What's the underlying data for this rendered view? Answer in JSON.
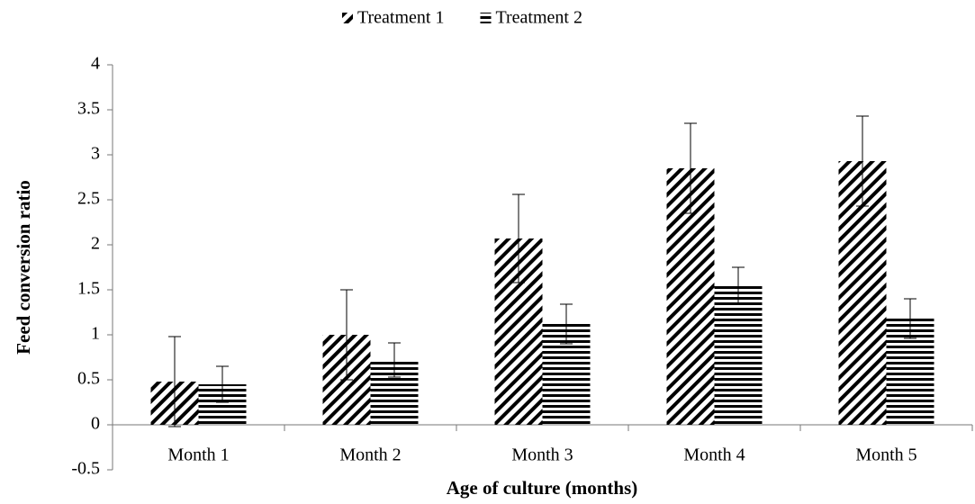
{
  "chart_data": {
    "type": "bar",
    "x_label": "Age of culture (months)",
    "y_label": "Feed conversion ratio",
    "categories": [
      "Month 1",
      "Month 2",
      "Month 3",
      "Month 4",
      "Month 5"
    ],
    "series": [
      {
        "name": "Treatment 1",
        "color": "#000000",
        "pattern": "diagonal",
        "values": [
          0.48,
          1.0,
          2.07,
          2.85,
          2.93
        ],
        "errors": [
          0.5,
          0.5,
          0.49,
          0.5,
          0.5
        ]
      },
      {
        "name": "Treatment 2",
        "color": "#000000",
        "pattern": "horizontal",
        "values": [
          0.45,
          0.72,
          1.12,
          1.55,
          1.18
        ],
        "errors": [
          0.2,
          0.19,
          0.22,
          0.2,
          0.22
        ]
      }
    ],
    "ylim": [
      -0.5,
      4
    ],
    "yticks": [
      -0.5,
      0,
      0.5,
      1,
      1.5,
      2,
      2.5,
      3,
      3.5,
      4
    ],
    "legend": "top",
    "grid": false
  }
}
